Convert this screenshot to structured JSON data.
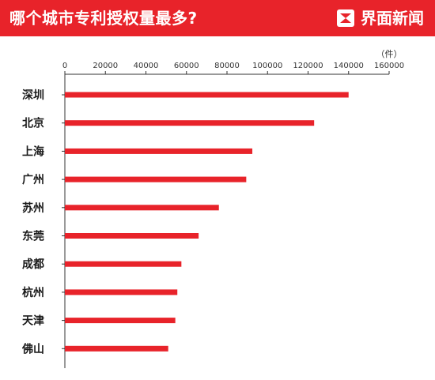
{
  "header": {
    "title": "哪个城市专利授权量最多?",
    "brand_name": "界面新闻",
    "brand_icon": "jiemian-logo-icon",
    "color": "#e8232a"
  },
  "chart_data": {
    "type": "bar",
    "orientation": "horizontal",
    "title": "哪个城市专利授权量最多?",
    "unit_label": "（件）",
    "categories": [
      "深圳",
      "北京",
      "上海",
      "广州",
      "苏州",
      "东莞",
      "成都",
      "杭州",
      "天津",
      "佛山"
    ],
    "values": [
      140000,
      123000,
      92500,
      89500,
      76000,
      66000,
      57500,
      55500,
      54500,
      51000
    ],
    "xlim": [
      0,
      160000
    ],
    "ticks": [
      "0",
      "20000",
      "40000",
      "60000",
      "80000",
      "100000",
      "120000",
      "140000",
      "160000"
    ],
    "tick_values": [
      0,
      20000,
      40000,
      60000,
      80000,
      100000,
      120000,
      140000,
      160000
    ],
    "grid": false,
    "bar_color": "#e8232a",
    "axis_color": "#333333"
  }
}
